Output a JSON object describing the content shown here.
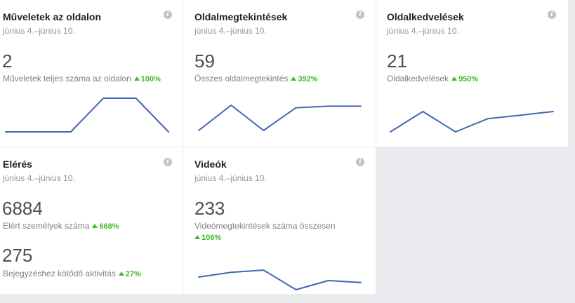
{
  "cards": {
    "actions": {
      "title": "Műveletek az oldalon",
      "date": "június 4.–június 10.",
      "value": "2",
      "label": "Műveletek teljes száma az oldalon",
      "delta": "100%",
      "info": "i",
      "trend": [
        0,
        0,
        0,
        1,
        1,
        0
      ]
    },
    "views": {
      "title": "Oldalmegtekintések",
      "date": "június 4.–június 10.",
      "value": "59",
      "label": "Összes oldalmegtekintés",
      "delta": "392%",
      "info": "i",
      "trend": [
        0.0,
        1.0,
        0.0,
        0.9,
        0.96,
        0.96
      ]
    },
    "likes": {
      "title": "Oldalkedvelések",
      "date": "június 4.–június 10.",
      "value": "21",
      "label": "Oldalkedvelések",
      "delta": "950%",
      "info": "i",
      "trend": [
        0.0,
        1.0,
        0.0,
        0.65,
        0.82,
        1.0
      ]
    },
    "reach": {
      "title": "Elérés",
      "date": "június 4.–június 10.",
      "value": "6884",
      "label": "Elért személyek száma",
      "delta": "668%",
      "value2": "275",
      "label2": "Bejegyzéshez kötődő aktivitás",
      "delta2": "27%",
      "info": "i"
    },
    "videos": {
      "title": "Videók",
      "date": "június 4.–június 10.",
      "value": "233",
      "label": "Videómegtekintések száma összesen",
      "delta": "106%",
      "info": "i",
      "trend": [
        0.58,
        0.8,
        0.9,
        0.0,
        0.42,
        0.33
      ]
    }
  },
  "colors": {
    "line": "#4267b2",
    "positive": "#42b72a",
    "background": "#e9ebee"
  }
}
